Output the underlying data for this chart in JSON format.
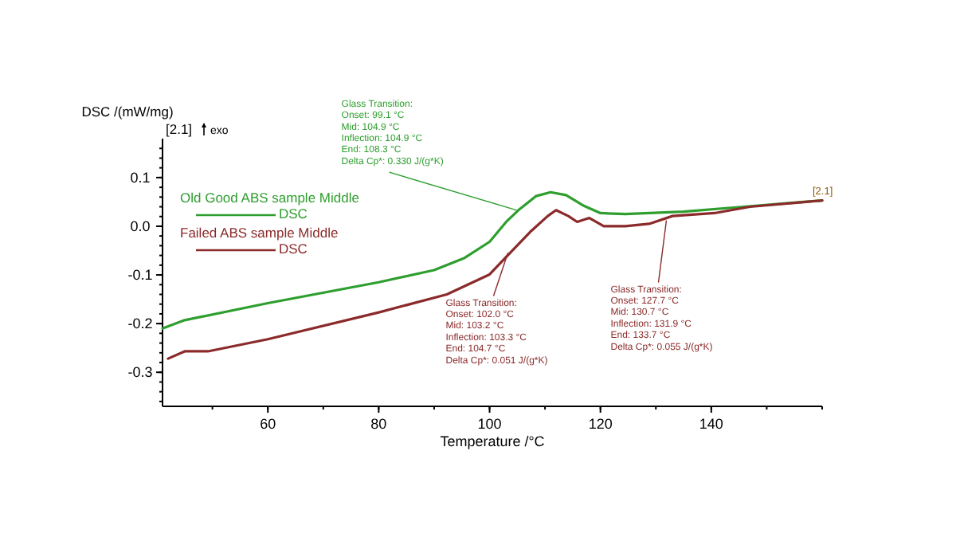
{
  "chart_data": {
    "type": "line",
    "xlabel": "Temperature /°C",
    "ylabel": "DSC /(mW/mg)",
    "xlim": [
      41,
      160
    ],
    "xticks": [
      60,
      80,
      100,
      120,
      140
    ],
    "ylim": [
      -0.37,
      0.18
    ],
    "yticks": [
      {
        "value": 0.1,
        "label": "0.1"
      },
      {
        "value": 0,
        "label": "0.0"
      },
      -0.1,
      -0.2,
      -0.3
    ],
    "legend": "top left",
    "grid": false,
    "line_style": "solid",
    "marker": "none",
    "series": [
      {
        "name": "Old Good ABS sample Middle\nDSC",
        "color": "#2e9e2e",
        "x": [
          41,
          45,
          60,
          80,
          90,
          95.5,
          100,
          103,
          105.2,
          108.4,
          111,
          113.8,
          117,
          120,
          124.5,
          135,
          145.8,
          160
        ],
        "values": [
          -0.21,
          -0.193,
          -0.158,
          -0.115,
          -0.09,
          -0.065,
          -0.032,
          0.009,
          0.033,
          0.062,
          0.07,
          0.064,
          0.042,
          0.027,
          0.025,
          0.03,
          0.04,
          0.053
        ]
      },
      {
        "name": "Failed ABS sample Middle\nDSC",
        "color": "#8b2a2a",
        "x": [
          42,
          45,
          49.2,
          60,
          80,
          92.3,
          100,
          103.5,
          107.3,
          110.5,
          112,
          114.2,
          115.8,
          118,
          120.6,
          124.5,
          128.8,
          133,
          140.6,
          147,
          160
        ],
        "values": [
          -0.272,
          -0.257,
          -0.257,
          -0.232,
          -0.177,
          -0.14,
          -0.099,
          -0.057,
          -0.012,
          0.021,
          0.033,
          0.021,
          0.009,
          0.017,
          0,
          0,
          0.005,
          0.021,
          0.027,
          0.04,
          0.053
        ]
      }
    ],
    "annotations": [
      {
        "text": "Glass Transition:\nOnset: 99.1 °C\nMid: 104.9 °C\nInflection: 104.9 °C\nEnd: 108.3 °C\nDelta Cp*: 0.330 J/(g*K)",
        "x": 104.9,
        "y": 0.033
      },
      {
        "text": "Glass Transition:\nOnset: 102.0 °C\nMid: 103.2 °C\nInflection: 103.3 °C\nEnd: 104.7 °C\nDelta Cp*: 0.051 J/(g*K)",
        "x": 103.3,
        "y": -0.055
      },
      {
        "text": "Glass Transition:\nOnset: 127.7 °C\nMid: 130.7 °C\nInflection: 131.9 °C\nEnd: 133.7 °C\nDelta Cp*: 0.055 J/(g*K)",
        "x": 131.9,
        "y": 0.012
      },
      "[2.1]",
      "exo",
      {
        "text": "[2.1]",
        "x": 160,
        "y": 0.053
      }
    ]
  }
}
